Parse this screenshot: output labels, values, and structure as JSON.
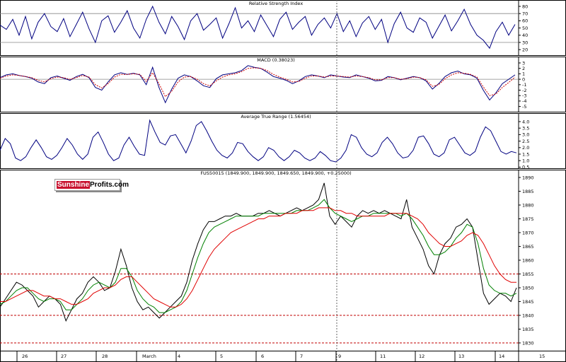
{
  "logo": {
    "part1": "Sunshine",
    "part2": "Profits.com"
  },
  "panels": {
    "rsi": {
      "title": "Relative Strength Index",
      "ticks": [
        "80",
        "70",
        "60",
        "50",
        "40",
        "30",
        "20"
      ]
    },
    "macd": {
      "title": "MACD (0.38023)",
      "ticks": [
        "3",
        "2",
        "1",
        "0",
        "-1",
        "-2",
        "-3",
        "-4",
        "-5"
      ]
    },
    "atr": {
      "title": "Average True Range (1.56454)",
      "ticks": [
        "4.0",
        "3.5",
        "3.0",
        "2.5",
        "2.0",
        "1.5",
        "1.0",
        "0.5"
      ]
    },
    "price": {
      "title": "FUS50015 (1849.900, 1849.900, 1849.650, 1849.900, +0.25000)",
      "ticks": [
        "1890",
        "1885",
        "1880",
        "1875",
        "1870",
        "1865",
        "1860",
        "1855",
        "1850",
        "1845",
        "1840",
        "1835",
        "1830"
      ]
    }
  },
  "x_axis": {
    "labels": [
      "26",
      "27",
      "28",
      "March",
      "4",
      "5",
      "6",
      "7",
      "9",
      "11",
      "12",
      "13",
      "14",
      "15"
    ]
  },
  "colors": {
    "price": "#000000",
    "ma_fast": "#008000",
    "ma_slow": "#e00000",
    "indicator": "#000080",
    "signal": "#cc0000",
    "ref_line": "#c00000",
    "grid": "#888888"
  },
  "chart_data": [
    {
      "type": "line",
      "title": "Relative Strength Index",
      "ylim": [
        15,
        85
      ],
      "reference_lines": [
        70,
        30
      ],
      "series": [
        {
          "values": [
            54,
            48,
            62,
            40,
            66,
            35,
            58,
            70,
            52,
            45,
            63,
            38,
            55,
            72,
            49,
            30,
            60,
            67,
            44,
            58,
            74,
            50,
            36,
            62,
            80,
            58,
            42,
            66,
            52,
            34,
            60,
            70,
            47,
            55,
            64,
            36,
            56,
            78,
            50,
            60,
            45,
            68,
            53,
            38,
            62,
            72,
            48,
            58,
            66,
            40,
            55,
            64,
            50,
            70,
            45,
            60,
            38,
            57,
            66,
            48,
            62,
            30,
            56,
            72,
            50,
            44,
            64,
            58,
            36,
            52,
            68,
            46,
            60,
            76,
            55,
            40,
            33,
            22,
            45,
            58,
            40,
            55
          ]
        }
      ]
    },
    {
      "type": "line",
      "title": "MACD (0.38023)",
      "ylim": [
        -5.5,
        3.5
      ],
      "reference_lines": [
        0
      ],
      "series": [
        {
          "values": [
            0.3,
            0.8,
            1.0,
            0.7,
            0.5,
            0.2,
            -0.5,
            -0.8,
            0.3,
            0.6,
            0.2,
            -0.2,
            0.5,
            0.9,
            0.3,
            -1.5,
            -2.0,
            -0.5,
            0.8,
            1.2,
            0.9,
            1.1,
            0.8,
            -1.0,
            2.2,
            -1.5,
            -4.3,
            -1.8,
            0.2,
            0.8,
            0.5,
            -0.3,
            -1.2,
            -1.5,
            0.1,
            0.8,
            1.0,
            1.2,
            1.6,
            2.5,
            2.2,
            2.0,
            1.3,
            0.5,
            0.2,
            -0.2,
            -0.8,
            -0.3,
            0.5,
            0.8,
            0.6,
            0.3,
            0.8,
            0.6,
            0.4,
            0.3,
            0.8,
            0.5,
            0.2,
            -0.3,
            -0.2,
            0.5,
            0.3,
            -0.1,
            0.2,
            0.5,
            0.3,
            -0.3,
            -1.8,
            -0.8,
            0.5,
            1.2,
            1.5,
            1.0,
            0.8,
            0.2,
            -2.0,
            -3.8,
            -2.5,
            -0.8,
            0.0,
            0.8
          ]
        },
        {
          "values": [
            0.2,
            0.6,
            0.8,
            0.7,
            0.5,
            0.3,
            -0.2,
            -0.5,
            0.1,
            0.4,
            0.3,
            0.0,
            0.3,
            0.7,
            0.4,
            -1.0,
            -1.6,
            -0.8,
            0.4,
            0.9,
            0.9,
            1.0,
            0.9,
            -0.4,
            1.2,
            -0.8,
            -3.2,
            -2.2,
            -0.5,
            0.4,
            0.5,
            0.0,
            -0.8,
            -1.2,
            -0.3,
            0.4,
            0.8,
            1.0,
            1.4,
            2.0,
            2.1,
            2.0,
            1.6,
            0.9,
            0.4,
            0.0,
            -0.5,
            -0.4,
            0.2,
            0.6,
            0.6,
            0.4,
            0.6,
            0.6,
            0.5,
            0.4,
            0.6,
            0.5,
            0.3,
            -0.1,
            -0.1,
            0.3,
            0.3,
            0.0,
            0.1,
            0.4,
            0.3,
            -0.1,
            -1.3,
            -1.0,
            0.1,
            0.8,
            1.2,
            1.1,
            0.9,
            0.4,
            -1.4,
            -3.0,
            -2.7,
            -1.5,
            -0.6,
            0.4
          ]
        }
      ]
    },
    {
      "type": "line",
      "title": "Average True Range (1.56454)",
      "ylim": [
        0.5,
        4.25
      ],
      "series": [
        {
          "values": [
            1.8,
            2.7,
            2.3,
            1.2,
            1.0,
            1.3,
            2.0,
            2.6,
            2.0,
            1.3,
            1.1,
            1.4,
            2.0,
            2.7,
            2.2,
            1.5,
            1.1,
            1.5,
            2.8,
            3.2,
            2.4,
            1.5,
            1.0,
            1.2,
            2.2,
            2.8,
            2.1,
            1.5,
            1.4,
            4.1,
            3.2,
            2.4,
            2.2,
            2.9,
            3.0,
            2.3,
            1.6,
            2.5,
            3.7,
            4.0,
            3.3,
            2.5,
            1.8,
            1.4,
            1.2,
            1.6,
            2.4,
            2.3,
            1.7,
            1.3,
            1.0,
            1.3,
            2.0,
            1.8,
            1.3,
            1.0,
            1.3,
            1.8,
            1.6,
            1.2,
            1.0,
            1.2,
            1.7,
            1.4,
            1.0,
            0.9,
            1.2,
            1.8,
            3.0,
            2.8,
            2.0,
            1.5,
            1.3,
            1.6,
            2.4,
            2.8,
            2.3,
            1.6,
            1.2,
            1.3,
            1.8,
            2.8,
            2.9,
            2.3,
            1.5,
            1.3,
            1.6,
            2.6,
            2.8,
            2.2,
            1.6,
            1.4,
            1.7,
            2.8,
            3.6,
            3.3,
            2.5,
            1.7,
            1.5,
            1.7,
            1.6
          ]
        }
      ]
    },
    {
      "type": "line",
      "title": "FUS50015 (1849.900, 1849.900, 1849.650, 1849.900, +0.25000)",
      "ylim": [
        1828,
        1892
      ],
      "reference_lines": [
        1855,
        1840,
        1830
      ],
      "series": [
        {
          "values": [
            1843,
            1846,
            1849,
            1852,
            1851,
            1849,
            1847,
            1843,
            1845,
            1847,
            1846,
            1844,
            1838,
            1842,
            1846,
            1848,
            1852,
            1854,
            1852,
            1849,
            1850,
            1856,
            1864,
            1858,
            1850,
            1845,
            1842,
            1843,
            1841,
            1839,
            1841,
            1843,
            1845,
            1847,
            1852,
            1860,
            1866,
            1871,
            1874,
            1874,
            1875,
            1876,
            1876,
            1877,
            1876,
            1876,
            1876,
            1877,
            1877,
            1878,
            1877,
            1876,
            1877,
            1878,
            1879,
            1878,
            1879,
            1880,
            1882,
            1888,
            1876,
            1873,
            1876,
            1874,
            1872,
            1876,
            1878,
            1877,
            1878,
            1877,
            1878,
            1877,
            1876,
            1875,
            1882,
            1872,
            1868,
            1864,
            1858,
            1855,
            1862,
            1866,
            1868,
            1872,
            1873,
            1875,
            1872,
            1860,
            1848,
            1844,
            1846,
            1848,
            1847,
            1845,
            1850
          ]
        },
        {
          "values": [
            1844,
            1845,
            1847,
            1849,
            1850,
            1850,
            1848,
            1846,
            1845,
            1846,
            1846,
            1845,
            1842,
            1842,
            1844,
            1846,
            1849,
            1851,
            1852,
            1851,
            1850,
            1852,
            1857,
            1857,
            1854,
            1849,
            1846,
            1844,
            1843,
            1841,
            1841,
            1842,
            1843,
            1845,
            1849,
            1855,
            1861,
            1866,
            1870,
            1872,
            1873,
            1874,
            1875,
            1876,
            1876,
            1876,
            1876,
            1876,
            1877,
            1877,
            1877,
            1877,
            1877,
            1877,
            1878,
            1878,
            1878,
            1879,
            1880,
            1882,
            1879,
            1877,
            1876,
            1875,
            1874,
            1875,
            1876,
            1876,
            1877,
            1877,
            1877,
            1877,
            1877,
            1876,
            1877,
            1875,
            1872,
            1869,
            1865,
            1862,
            1862,
            1863,
            1865,
            1868,
            1870,
            1873,
            1872,
            1866,
            1857,
            1851,
            1849,
            1848,
            1848,
            1847,
            1848
          ]
        },
        {
          "values": [
            1845,
            1845,
            1846,
            1847,
            1848,
            1849,
            1849,
            1848,
            1847,
            1847,
            1846,
            1846,
            1845,
            1844,
            1844,
            1845,
            1846,
            1848,
            1849,
            1850,
            1850,
            1851,
            1853,
            1854,
            1854,
            1852,
            1850,
            1848,
            1846,
            1845,
            1844,
            1843,
            1843,
            1844,
            1846,
            1849,
            1853,
            1857,
            1861,
            1864,
            1866,
            1868,
            1870,
            1871,
            1872,
            1873,
            1874,
            1875,
            1875,
            1876,
            1876,
            1876,
            1877,
            1877,
            1877,
            1878,
            1878,
            1878,
            1879,
            1879,
            1879,
            1878,
            1878,
            1877,
            1877,
            1876,
            1876,
            1876,
            1876,
            1876,
            1876,
            1877,
            1877,
            1877,
            1877,
            1876,
            1875,
            1873,
            1870,
            1868,
            1866,
            1865,
            1865,
            1866,
            1867,
            1869,
            1870,
            1869,
            1866,
            1862,
            1858,
            1855,
            1853,
            1852,
            1852
          ]
        }
      ]
    }
  ]
}
